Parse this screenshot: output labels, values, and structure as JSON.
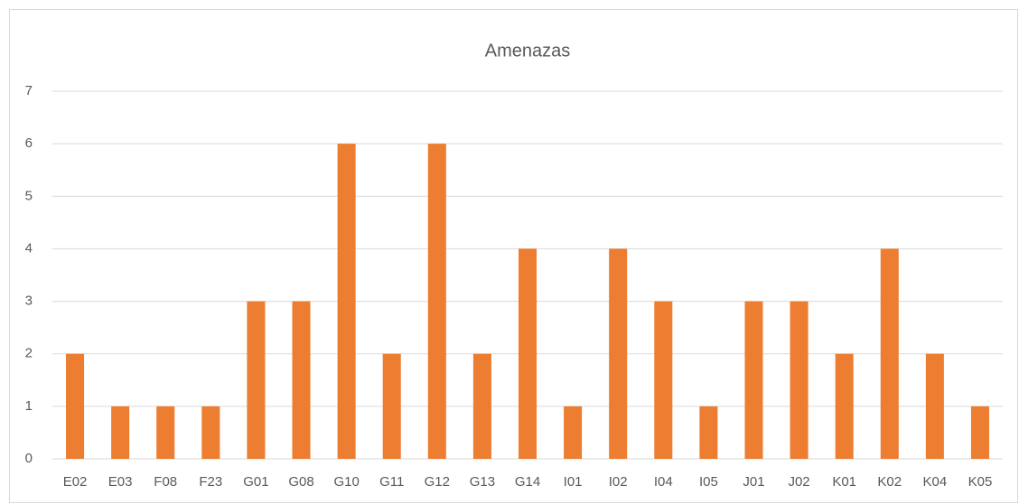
{
  "chart_data": {
    "type": "bar",
    "title": "Amenazas",
    "categories": [
      "E02",
      "E03",
      "F08",
      "F23",
      "G01",
      "G08",
      "G10",
      "G11",
      "G12",
      "G13",
      "G14",
      "I01",
      "I02",
      "I04",
      "I05",
      "J01",
      "J02",
      "K01",
      "K02",
      "K04",
      "K05"
    ],
    "values": [
      2,
      1,
      1,
      1,
      3,
      3,
      6,
      2,
      6,
      2,
      4,
      1,
      4,
      3,
      1,
      3,
      3,
      2,
      4,
      2,
      1
    ],
    "color": "#ed7d31",
    "ylim": [
      0,
      7
    ],
    "yticks": [
      0,
      1,
      2,
      3,
      4,
      5,
      6,
      7
    ],
    "grid": true
  }
}
